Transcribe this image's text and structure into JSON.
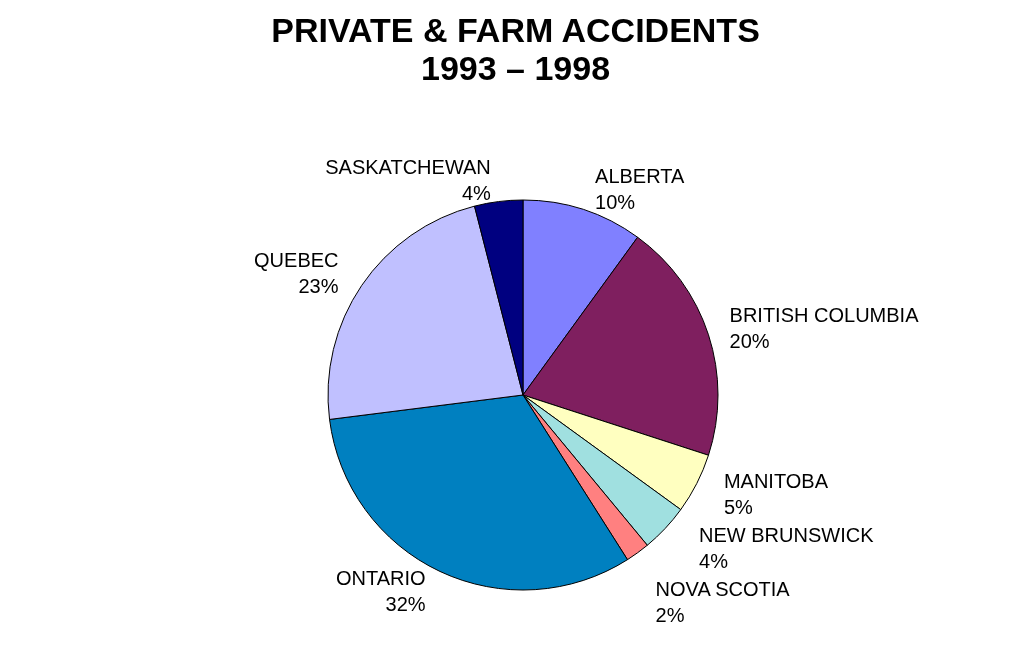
{
  "chart_data": {
    "type": "pie",
    "title": "PRIVATE & FARM ACCIDENTS",
    "subtitle": "1993 – 1998",
    "categories": [
      "ALBERTA",
      "BRITISH COLUMBIA",
      "MANITOBA",
      "NEW BRUNSWICK",
      "NOVA SCOTIA",
      "ONTARIO",
      "QUEBEC",
      "SASKATCHEWAN"
    ],
    "values": [
      10,
      20,
      5,
      4,
      2,
      32,
      23,
      4
    ],
    "value_labels": [
      "10%",
      "20%",
      "5%",
      "4%",
      "2%",
      "32%",
      "23%",
      "4%"
    ],
    "colors": [
      "#8080ff",
      "#7f1f5f",
      "#ffffc0",
      "#a0e0e0",
      "#ff8080",
      "#0080c0",
      "#c0c0ff",
      "#000080"
    ],
    "legend": false
  }
}
